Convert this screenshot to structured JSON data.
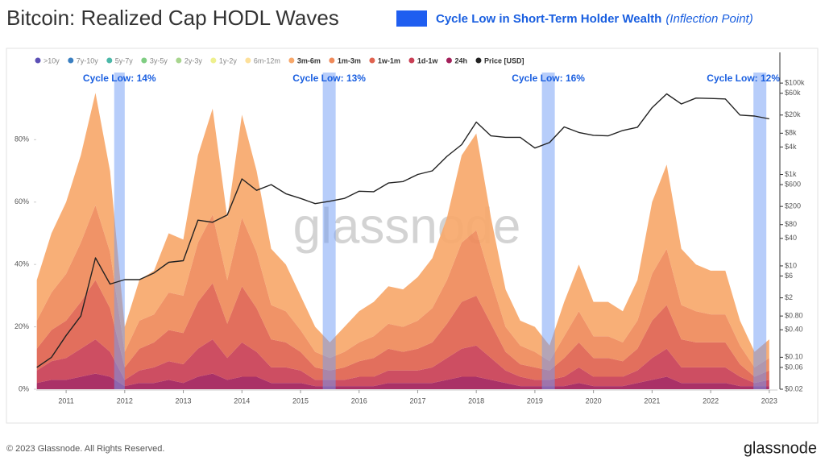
{
  "title": "Bitcoin: Realized Cap HODL Waves",
  "footer": "© 2023 Glassnode. All Rights Reserved.",
  "brand": "glassnode",
  "chart_data": {
    "type": "stacked_area",
    "watermark": "glassnode",
    "highlight_legend": {
      "label": "Cycle Low in Short-Term Holder Wealth",
      "note": "(Inflection Point)",
      "color": "#6f9cf5"
    },
    "highlights": [
      {
        "x0": 2011.82,
        "x1": 2012.0,
        "label": "Cycle Low: 14%"
      },
      {
        "x0": 2015.38,
        "x1": 2015.6,
        "label": "Cycle Low: 13%"
      },
      {
        "x0": 2019.12,
        "x1": 2019.34,
        "label": "Cycle Low: 16%"
      },
      {
        "x0": 2022.73,
        "x1": 2022.95,
        "label": "Cycle Low: 12%"
      }
    ],
    "legend_only_series": [
      {
        "name": ">10y",
        "color": "#5b4fb5"
      },
      {
        "name": "7y-10y",
        "color": "#3a7fc1"
      },
      {
        "name": "5y-7y",
        "color": "#4cb8a8"
      },
      {
        "name": "3y-5y",
        "color": "#7fcd82"
      },
      {
        "name": "2y-3y",
        "color": "#a8d58e"
      },
      {
        "name": "1y-2y",
        "color": "#eef08e"
      },
      {
        "name": "6m-12m",
        "color": "#fde09a"
      }
    ],
    "x": [
      2010.5,
      2010.75,
      2011,
      2011.25,
      2011.5,
      2011.75,
      2012,
      2012.25,
      2012.5,
      2012.75,
      2013,
      2013.25,
      2013.5,
      2013.75,
      2014,
      2014.25,
      2014.5,
      2014.75,
      2015,
      2015.25,
      2015.5,
      2015.75,
      2016,
      2016.25,
      2016.5,
      2016.75,
      2017,
      2017.25,
      2017.5,
      2017.75,
      2018,
      2018.25,
      2018.5,
      2018.75,
      2019,
      2019.25,
      2019.5,
      2019.75,
      2020,
      2020.25,
      2020.5,
      2020.75,
      2021,
      2021.25,
      2021.5,
      2021.75,
      2022,
      2022.25,
      2022.5,
      2022.75,
      2023
    ],
    "xlim": [
      2010.49,
      2023.14
    ],
    "xticks": [
      2011,
      2012,
      2013,
      2014,
      2015,
      2016,
      2017,
      2018,
      2019,
      2020,
      2021,
      2022,
      2023
    ],
    "ylim": [
      0,
      108
    ],
    "yticks": [
      {
        "value": 0,
        "label": "0%"
      },
      {
        "value": 20,
        "label": "20%"
      },
      {
        "value": 40,
        "label": "40%"
      },
      {
        "value": 60,
        "label": "60%"
      },
      {
        "value": 80,
        "label": "80%"
      }
    ],
    "y2_log": true,
    "y2lim": [
      0.02,
      470000
    ],
    "y2ticks": [
      {
        "value": 0.02,
        "label": "$0.02"
      },
      {
        "value": 0.06,
        "label": "$0.06"
      },
      {
        "value": 0.1,
        "label": "$0.10"
      },
      {
        "value": 0.4,
        "label": "$0.40"
      },
      {
        "value": 0.8,
        "label": "$0.80"
      },
      {
        "value": 2,
        "label": "$2"
      },
      {
        "value": 6,
        "label": "$6"
      },
      {
        "value": 10,
        "label": "$10"
      },
      {
        "value": 40,
        "label": "$40"
      },
      {
        "value": 80,
        "label": "$80"
      },
      {
        "value": 200,
        "label": "$200"
      },
      {
        "value": 600,
        "label": "$600"
      },
      {
        "value": 1000,
        "label": "$1k"
      },
      {
        "value": 4000,
        "label": "$4k"
      },
      {
        "value": 8000,
        "label": "$8k"
      },
      {
        "value": 20000,
        "label": "$20k"
      },
      {
        "value": 60000,
        "label": "$60k"
      },
      {
        "value": 100000,
        "label": "$100k"
      }
    ],
    "series": [
      {
        "name": "3m-6m",
        "color": "#f7a86b",
        "values": [
          13,
          19,
          23,
          28,
          36,
          26,
          8,
          13,
          14,
          19,
          18,
          28,
          34,
          20,
          33,
          26,
          18,
          15,
          11,
          8,
          5,
          8,
          10,
          11,
          12,
          12,
          14,
          16,
          20,
          28,
          31,
          20,
          12,
          8,
          8,
          5,
          11,
          15,
          11,
          11,
          10,
          13,
          23,
          27,
          18,
          15,
          14,
          14,
          8,
          5,
          6
        ]
      },
      {
        "name": "1m-3m",
        "color": "#ef8a5a",
        "values": [
          9,
          12,
          15,
          19,
          24,
          18,
          5,
          9,
          9,
          12,
          12,
          19,
          22,
          14,
          22,
          18,
          11,
          10,
          7,
          5,
          4,
          5,
          6,
          7,
          8,
          8,
          9,
          11,
          14,
          19,
          21,
          14,
          8,
          6,
          5,
          3,
          7,
          10,
          7,
          7,
          6,
          9,
          15,
          18,
          11,
          10,
          9,
          9,
          6,
          3,
          4
        ]
      },
      {
        "name": "1w-1m",
        "color": "#e0634f",
        "values": [
          7,
          10,
          12,
          15,
          19,
          14,
          4,
          7,
          8,
          10,
          10,
          15,
          18,
          11,
          18,
          14,
          9,
          8,
          6,
          4,
          3,
          4,
          5,
          6,
          7,
          6,
          7,
          8,
          11,
          15,
          16,
          11,
          6,
          4,
          4,
          3,
          6,
          8,
          6,
          6,
          5,
          7,
          12,
          14,
          9,
          8,
          8,
          8,
          4,
          2,
          3
        ]
      },
      {
        "name": "1d-1w",
        "color": "#c93f55",
        "values": [
          4,
          6,
          7,
          9,
          11,
          8,
          2,
          4,
          5,
          6,
          6,
          9,
          11,
          7,
          11,
          8,
          5,
          5,
          4,
          2,
          2,
          2,
          3,
          3,
          4,
          4,
          4,
          5,
          7,
          9,
          10,
          7,
          4,
          3,
          2,
          2,
          3,
          5,
          3,
          3,
          3,
          4,
          7,
          9,
          5,
          5,
          5,
          5,
          3,
          1,
          2
        ]
      },
      {
        "name": "24h",
        "color": "#a3205a",
        "values": [
          2,
          3,
          3,
          4,
          5,
          4,
          1,
          2,
          2,
          3,
          2,
          4,
          5,
          3,
          4,
          4,
          2,
          2,
          2,
          1,
          1,
          1,
          1,
          1,
          2,
          2,
          2,
          2,
          3,
          4,
          4,
          3,
          2,
          1,
          1,
          1,
          1,
          2,
          1,
          1,
          1,
          2,
          3,
          4,
          2,
          2,
          2,
          2,
          1,
          1,
          1
        ]
      },
      {
        "name": "Price [USD]",
        "color": "#222222",
        "axis": "y2",
        "values": [
          0.06,
          0.1,
          0.3,
          0.8,
          15,
          4,
          5,
          5,
          7,
          12,
          13,
          100,
          90,
          130,
          800,
          450,
          600,
          380,
          300,
          230,
          260,
          300,
          430,
          420,
          650,
          700,
          1000,
          1200,
          2500,
          4500,
          14000,
          7000,
          6500,
          6500,
          3800,
          5000,
          11000,
          8300,
          7200,
          7000,
          9200,
          10800,
          29000,
          58000,
          35000,
          47000,
          46000,
          45000,
          20000,
          19000,
          16500
        ]
      }
    ]
  }
}
